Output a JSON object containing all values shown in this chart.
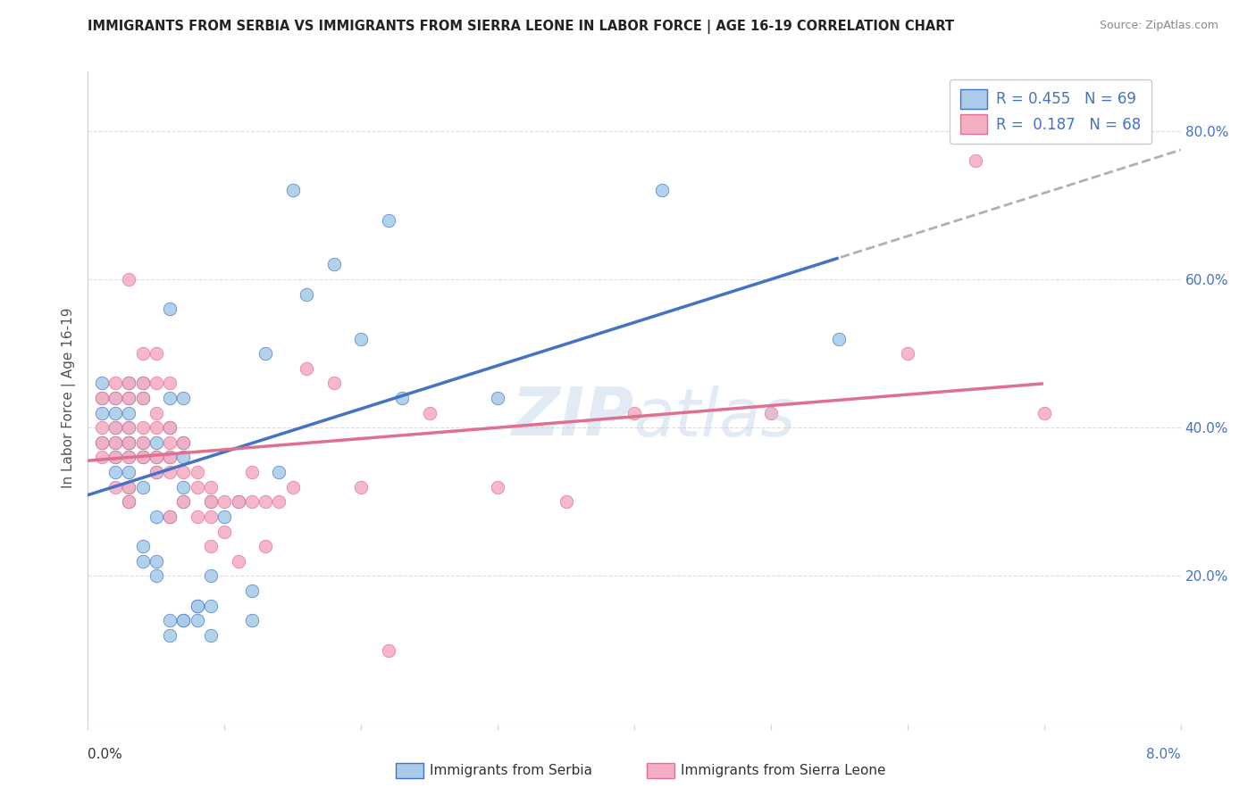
{
  "title": "IMMIGRANTS FROM SERBIA VS IMMIGRANTS FROM SIERRA LEONE IN LABOR FORCE | AGE 16-19 CORRELATION CHART",
  "source": "Source: ZipAtlas.com",
  "ylabel": "In Labor Force | Age 16-19",
  "xmin": 0.0,
  "xmax": 0.08,
  "ymin": 0.0,
  "ymax": 0.88,
  "serbia_R": 0.455,
  "serbia_N": 69,
  "sierraleone_R": 0.187,
  "sierraleone_N": 68,
  "serbia_color": "#aacce8",
  "sierraleone_color": "#f4afc4",
  "serbia_line_color": "#4472c4",
  "sierraleone_line_color": "#e07090",
  "trend_ext_color": "#b0b0b0",
  "label_color": "#4472c4",
  "serbia_x": [
    0.001,
    0.001,
    0.001,
    0.001,
    0.002,
    0.002,
    0.002,
    0.002,
    0.002,
    0.002,
    0.003,
    0.003,
    0.003,
    0.003,
    0.003,
    0.003,
    0.003,
    0.003,
    0.003,
    0.003,
    0.004,
    0.004,
    0.004,
    0.004,
    0.004,
    0.004,
    0.004,
    0.005,
    0.005,
    0.005,
    0.005,
    0.005,
    0.005,
    0.006,
    0.006,
    0.006,
    0.006,
    0.006,
    0.006,
    0.006,
    0.007,
    0.007,
    0.007,
    0.007,
    0.007,
    0.007,
    0.007,
    0.008,
    0.008,
    0.008,
    0.009,
    0.009,
    0.009,
    0.009,
    0.01,
    0.011,
    0.012,
    0.012,
    0.013,
    0.014,
    0.015,
    0.016,
    0.018,
    0.02,
    0.022,
    0.023,
    0.03,
    0.042,
    0.055
  ],
  "serbia_y": [
    0.38,
    0.42,
    0.44,
    0.46,
    0.34,
    0.36,
    0.38,
    0.4,
    0.42,
    0.44,
    0.3,
    0.32,
    0.34,
    0.36,
    0.38,
    0.38,
    0.4,
    0.42,
    0.44,
    0.46,
    0.22,
    0.24,
    0.32,
    0.36,
    0.38,
    0.44,
    0.46,
    0.2,
    0.22,
    0.28,
    0.34,
    0.36,
    0.38,
    0.12,
    0.14,
    0.28,
    0.36,
    0.4,
    0.44,
    0.56,
    0.14,
    0.14,
    0.3,
    0.32,
    0.36,
    0.38,
    0.44,
    0.14,
    0.16,
    0.16,
    0.12,
    0.16,
    0.2,
    0.3,
    0.28,
    0.3,
    0.14,
    0.18,
    0.5,
    0.34,
    0.72,
    0.58,
    0.62,
    0.52,
    0.68,
    0.44,
    0.44,
    0.72,
    0.52
  ],
  "sierraleone_x": [
    0.001,
    0.001,
    0.001,
    0.001,
    0.002,
    0.002,
    0.002,
    0.002,
    0.002,
    0.002,
    0.003,
    0.003,
    0.003,
    0.003,
    0.003,
    0.003,
    0.003,
    0.003,
    0.004,
    0.004,
    0.004,
    0.004,
    0.004,
    0.004,
    0.005,
    0.005,
    0.005,
    0.005,
    0.005,
    0.005,
    0.006,
    0.006,
    0.006,
    0.006,
    0.006,
    0.006,
    0.007,
    0.007,
    0.007,
    0.008,
    0.008,
    0.008,
    0.009,
    0.009,
    0.009,
    0.009,
    0.01,
    0.01,
    0.011,
    0.011,
    0.012,
    0.012,
    0.013,
    0.013,
    0.014,
    0.015,
    0.016,
    0.018,
    0.02,
    0.022,
    0.025,
    0.03,
    0.035,
    0.04,
    0.05,
    0.06,
    0.065,
    0.07
  ],
  "sierraleone_y": [
    0.36,
    0.38,
    0.4,
    0.44,
    0.32,
    0.36,
    0.38,
    0.4,
    0.44,
    0.46,
    0.3,
    0.32,
    0.36,
    0.38,
    0.4,
    0.44,
    0.46,
    0.6,
    0.36,
    0.38,
    0.4,
    0.44,
    0.46,
    0.5,
    0.34,
    0.36,
    0.4,
    0.42,
    0.46,
    0.5,
    0.28,
    0.34,
    0.36,
    0.38,
    0.4,
    0.46,
    0.3,
    0.34,
    0.38,
    0.28,
    0.32,
    0.34,
    0.24,
    0.28,
    0.3,
    0.32,
    0.26,
    0.3,
    0.22,
    0.3,
    0.3,
    0.34,
    0.24,
    0.3,
    0.3,
    0.32,
    0.48,
    0.46,
    0.32,
    0.1,
    0.42,
    0.32,
    0.3,
    0.42,
    0.42,
    0.5,
    0.76,
    0.42
  ]
}
